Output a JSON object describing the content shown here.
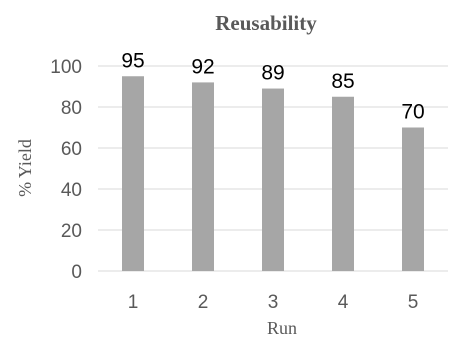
{
  "chart_data": {
    "type": "bar",
    "title": "Reusability",
    "xlabel": "Run",
    "ylabel": "% Yield",
    "categories": [
      "1",
      "2",
      "3",
      "4",
      "5"
    ],
    "values": [
      95,
      92,
      89,
      85,
      70
    ],
    "data_labels": [
      "95",
      "92",
      "89",
      "85",
      "70"
    ],
    "ylim": [
      0,
      100
    ],
    "yticks": [
      "0",
      "20",
      "40",
      "60",
      "80",
      "100"
    ],
    "grid": true,
    "legend": "none",
    "colors": {
      "bar": "#a6a6a6",
      "grid": "#d9d9d9",
      "text": "#595959"
    }
  }
}
